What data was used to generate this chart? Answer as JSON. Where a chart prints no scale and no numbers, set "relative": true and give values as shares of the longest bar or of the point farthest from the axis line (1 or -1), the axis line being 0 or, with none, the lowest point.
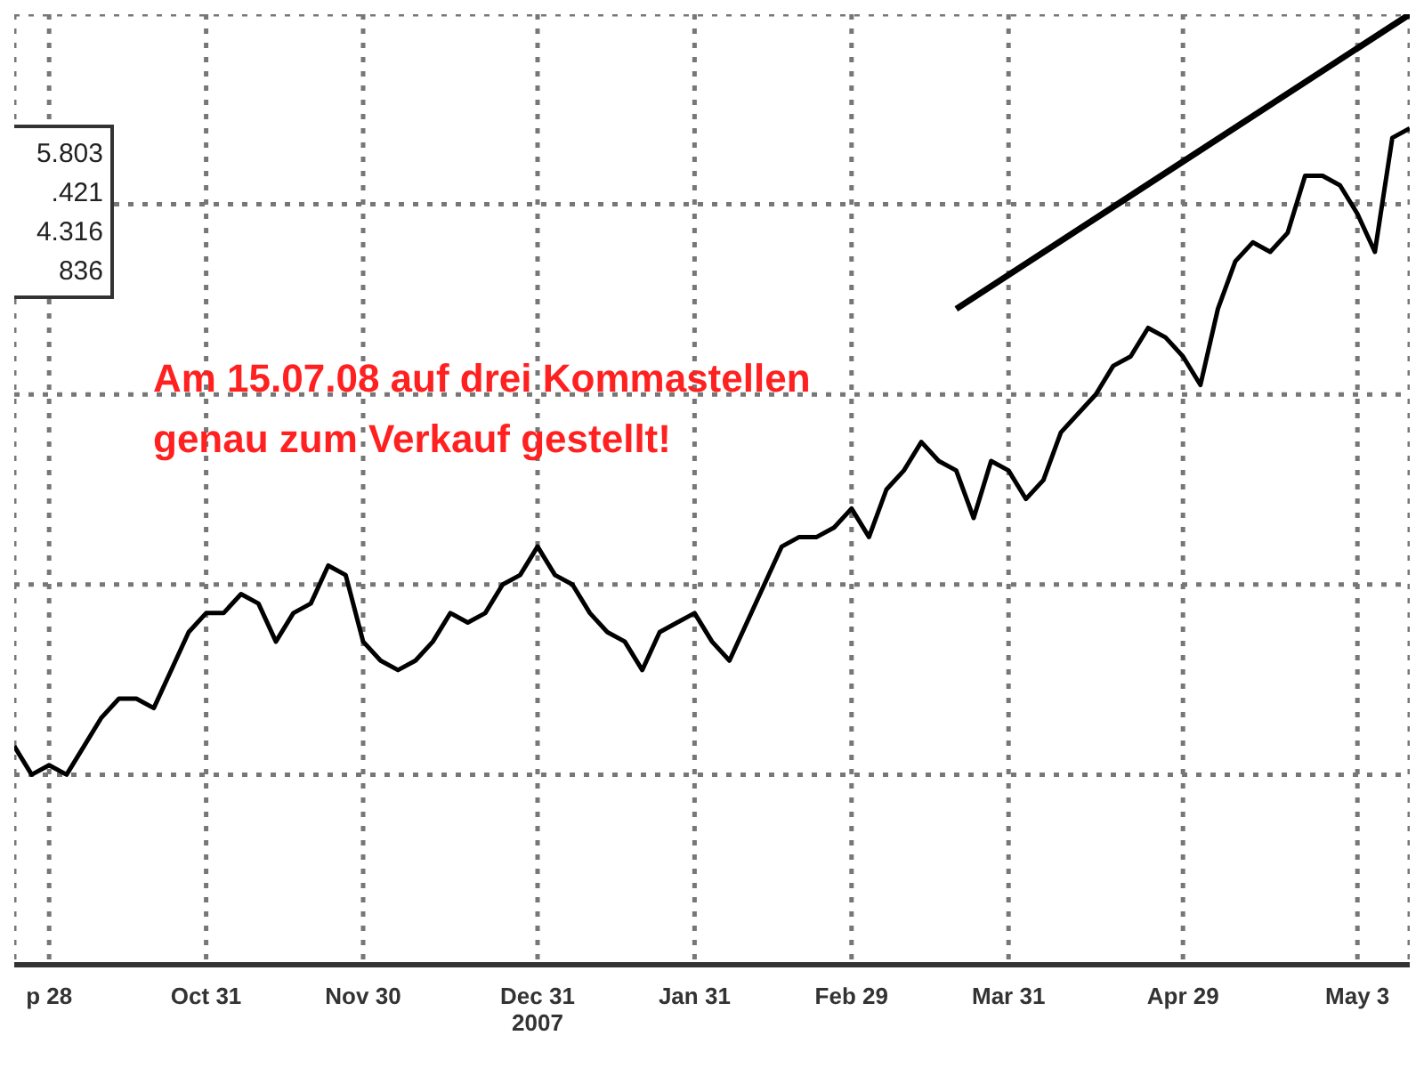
{
  "chart_data": {
    "type": "line",
    "relative": true,
    "grid": true,
    "categories": [
      null,
      null,
      "p 28",
      null,
      null,
      null,
      null,
      null,
      null,
      null,
      null,
      "Oct 31",
      null,
      null,
      null,
      null,
      null,
      null,
      null,
      null,
      "Nov 30",
      null,
      null,
      null,
      null,
      null,
      null,
      null,
      null,
      null,
      "Dec 31\n2007",
      null,
      null,
      null,
      null,
      null,
      null,
      null,
      null,
      "Jan 31",
      null,
      null,
      null,
      null,
      null,
      null,
      null,
      null,
      "Feb 29",
      null,
      null,
      null,
      null,
      null,
      null,
      null,
      null,
      "Mar 31",
      null,
      null,
      null,
      null,
      null,
      null,
      null,
      null,
      null,
      "Apr 29",
      null,
      null,
      null,
      null,
      null,
      null,
      null,
      null,
      null,
      "May 3",
      null,
      null,
      null
    ],
    "series": [
      {
        "color": "#000000",
        "values": [
          0.23,
          0.2,
          0.21,
          0.2,
          0.23,
          0.26,
          0.28,
          0.28,
          0.27,
          0.31,
          0.35,
          0.37,
          0.37,
          0.39,
          0.38,
          0.34,
          0.37,
          0.38,
          0.42,
          0.41,
          0.34,
          0.32,
          0.31,
          0.32,
          0.34,
          0.37,
          0.36,
          0.37,
          0.4,
          0.41,
          0.44,
          0.41,
          0.4,
          0.37,
          0.35,
          0.34,
          0.31,
          0.35,
          0.36,
          0.37,
          0.34,
          0.32,
          0.36,
          0.4,
          0.44,
          0.45,
          0.45,
          0.46,
          0.48,
          0.45,
          0.5,
          0.52,
          0.55,
          0.53,
          0.52,
          0.47,
          0.53,
          0.52,
          0.49,
          0.51,
          0.56,
          0.58,
          0.6,
          0.63,
          0.64,
          0.67,
          0.66,
          0.64,
          0.61,
          0.69,
          0.74,
          0.76,
          0.75,
          0.77,
          0.83,
          0.83,
          0.82,
          0.79,
          0.75,
          0.87,
          0.88
        ]
      },
      {
        "type": "line",
        "color": "#000000",
        "values": [
          null,
          null,
          null,
          null,
          null,
          null,
          null,
          null,
          null,
          null,
          null,
          null,
          null,
          null,
          null,
          null,
          null,
          null,
          null,
          null,
          null,
          null,
          null,
          null,
          null,
          null,
          null,
          null,
          null,
          null,
          null,
          null,
          null,
          null,
          null,
          null,
          null,
          null,
          null,
          null,
          null,
          null,
          null,
          null,
          null,
          null,
          null,
          null,
          null,
          null,
          null,
          null,
          null,
          null,
          0.69,
          null,
          null,
          null,
          null,
          null,
          null,
          null,
          null,
          null,
          null,
          null,
          null,
          null,
          null,
          null,
          null,
          null,
          null,
          null,
          null,
          null,
          null,
          null,
          null,
          null,
          1
        ]
      }
    ],
    "annotations": [
      "5.803",
      ".421",
      "4.316",
      "836",
      "Am 15.07.08 auf drei Kommastellen\ngenau zum Verkauf gestellt!"
    ]
  }
}
